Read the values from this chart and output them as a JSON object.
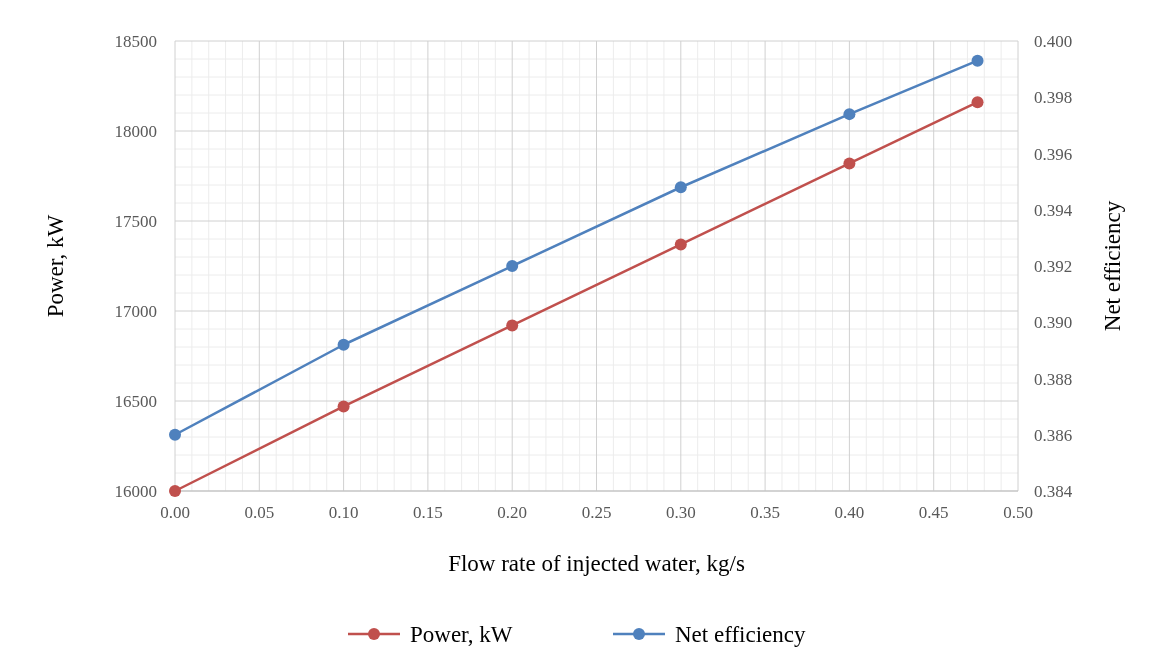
{
  "chart_data": {
    "type": "line",
    "xlabel": "Flow rate of injected water, kg/s",
    "ylabel": "Power, kW",
    "y2label": "Net efficiency",
    "x": [
      0,
      0.1,
      0.2,
      0.3,
      0.4,
      0.476
    ],
    "series": [
      {
        "name": "Power, kW",
        "color": "#c0504d",
        "values": [
          16000,
          16470,
          16920,
          17370,
          17820,
          18160
        ]
      },
      {
        "name": "Net efficiency",
        "color": "#4f81bd",
        "axis": "y2",
        "values": [
          0.386,
          0.3892,
          0.392,
          0.3948,
          0.3974,
          0.3993
        ]
      }
    ],
    "xlim": [
      0,
      0.5
    ],
    "xticks": [
      {
        "value": 0,
        "label": "0.00"
      },
      {
        "value": 0.05,
        "label": "0.05"
      },
      {
        "value": 0.1,
        "label": "0.10"
      },
      {
        "value": 0.15,
        "label": "0.15"
      },
      {
        "value": 0.2,
        "label": "0.20"
      },
      {
        "value": 0.25,
        "label": "0.25"
      },
      {
        "value": 0.3,
        "label": "0.30"
      },
      {
        "value": 0.35,
        "label": "0.35"
      },
      {
        "value": 0.4,
        "label": "0.40"
      },
      {
        "value": 0.45,
        "label": "0.45"
      },
      {
        "value": 0.5,
        "label": "0.50"
      }
    ],
    "ylim": [
      16000,
      18500
    ],
    "yticks": [
      16000,
      16500,
      17000,
      17500,
      18000,
      18500
    ],
    "y2lim": [
      0.384,
      0.4
    ],
    "y2ticks": [
      0.384,
      0.386,
      0.388,
      {
        "value": 0.39,
        "label": "0.390"
      },
      0.392,
      0.394,
      0.396,
      0.398,
      {
        "value": 0.4,
        "label": "0.400"
      }
    ],
    "grid": true,
    "legend": "bottom",
    "marker": "circle",
    "line_style": "solid"
  }
}
